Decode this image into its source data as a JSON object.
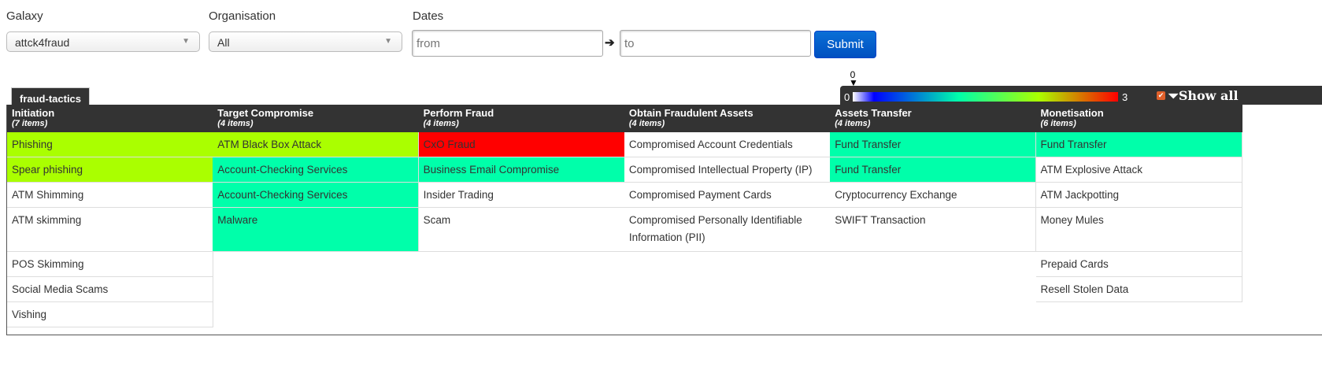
{
  "filters": {
    "galaxy": {
      "label": "Galaxy",
      "value": "attck4fraud"
    },
    "organisation": {
      "label": "Organisation",
      "value": "All"
    },
    "dates": {
      "label": "Dates",
      "from_placeholder": "from",
      "to_placeholder": "to"
    },
    "submit_label": "Submit"
  },
  "tab_label": "fraud-tactics",
  "legend": {
    "min": "0",
    "max": "3",
    "marker": "0",
    "show_all_label": "Show all",
    "show_all_checked": true,
    "colors": [
      "#ffffff",
      "#0000ff",
      "#00ffaa",
      "#aaff00",
      "#ff0000"
    ]
  },
  "colors": {
    "lime": "#aaff00",
    "teal": "#00ffaa",
    "red": "#ff0000",
    "white": "#ffffff"
  },
  "columns": [
    {
      "title": "Initiation",
      "count": "(7 items)",
      "items": [
        {
          "name": "Phishing",
          "score": 2
        },
        {
          "name": "Spear phishing",
          "score": 2
        },
        {
          "name": "ATM Shimming",
          "score": 0
        },
        {
          "name": "ATM skimming",
          "score": 0
        },
        {
          "name": "POS Skimming",
          "score": 0
        },
        {
          "name": "Social Media Scams",
          "score": 0
        },
        {
          "name": "Vishing",
          "score": 0
        }
      ]
    },
    {
      "title": "Target Compromise",
      "count": "(4 items)",
      "items": [
        {
          "name": "ATM Black Box Attack",
          "score": 2
        },
        {
          "name": "Account-Checking Services",
          "score": 1.5
        },
        {
          "name": "Account-Checking Services",
          "score": 1.5
        },
        {
          "name": "Malware",
          "score": 1.5
        }
      ]
    },
    {
      "title": "Perform Fraud",
      "count": "(4 items)",
      "items": [
        {
          "name": "CxO Fraud",
          "score": 3
        },
        {
          "name": "Business Email Compromise",
          "score": 1.5
        },
        {
          "name": "Insider Trading",
          "score": 0
        },
        {
          "name": "Scam",
          "score": 0
        }
      ]
    },
    {
      "title": "Obtain Fraudulent Assets",
      "count": "(4 items)",
      "items": [
        {
          "name": "Compromised Account Credentials",
          "score": 0
        },
        {
          "name": "Compromised Intellectual Property (IP)",
          "score": 0
        },
        {
          "name": "Compromised Payment Cards",
          "score": 0
        },
        {
          "name": "Compromised Personally Identifiable Information (PII)",
          "score": 0
        }
      ]
    },
    {
      "title": "Assets Transfer",
      "count": "(4 items)",
      "items": [
        {
          "name": "Fund Transfer",
          "score": 1.5
        },
        {
          "name": "Fund Transfer",
          "score": 1.5
        },
        {
          "name": "Cryptocurrency Exchange",
          "score": 0
        },
        {
          "name": "SWIFT Transaction",
          "score": 0
        }
      ]
    },
    {
      "title": "Monetisation",
      "count": "(6 items)",
      "items": [
        {
          "name": "Fund Transfer",
          "score": 1.5
        },
        {
          "name": "ATM Explosive Attack",
          "score": 0
        },
        {
          "name": "ATM Jackpotting",
          "score": 0
        },
        {
          "name": "Money Mules",
          "score": 0
        },
        {
          "name": "Prepaid Cards",
          "score": 0
        },
        {
          "name": "Resell Stolen Data",
          "score": 0
        }
      ]
    }
  ]
}
